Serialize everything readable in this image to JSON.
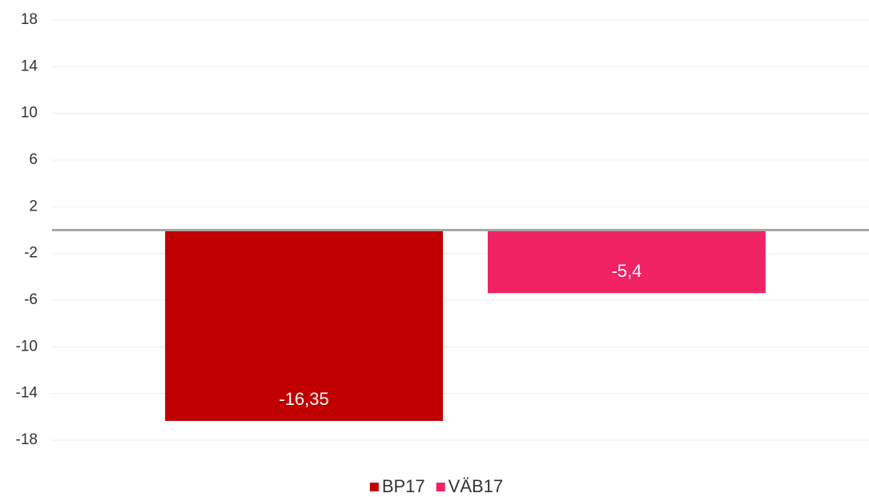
{
  "chart_data": {
    "type": "bar",
    "categories": [
      null
    ],
    "series": [
      {
        "name": "BP17",
        "color": "#c00000",
        "values": [
          -16.35
        ],
        "value_labels": [
          "-16,35"
        ]
      },
      {
        "name": "VÄB17",
        "color": "#f02264",
        "values": [
          -5.4
        ],
        "value_labels": [
          "-5,4"
        ]
      }
    ],
    "ylim": [
      -18,
      18
    ],
    "yticks": [
      18,
      14,
      10,
      6,
      2,
      -2,
      -6,
      -10,
      -14,
      -18
    ],
    "grid": true,
    "legend": "bottom"
  }
}
